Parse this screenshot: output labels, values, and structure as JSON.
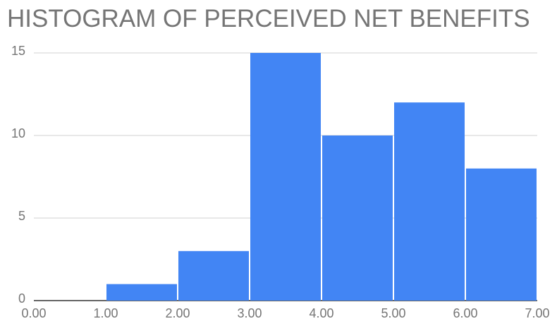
{
  "chart_data": {
    "type": "histogram",
    "title": "HISTOGRAM OF PERCEIVED NET BENEFITS",
    "bins": [
      0,
      1,
      2,
      3,
      4,
      5,
      6,
      7
    ],
    "values": [
      0,
      1,
      3,
      15,
      10,
      12,
      8
    ],
    "color": "#4285f4",
    "xlim": [
      0,
      7
    ],
    "xticks": [
      {
        "value": 0,
        "label": "0.00"
      },
      {
        "value": 1,
        "label": "1.00"
      },
      {
        "value": 2,
        "label": "2.00"
      },
      {
        "value": 3,
        "label": "3.00"
      },
      {
        "value": 4,
        "label": "4.00"
      },
      {
        "value": 5,
        "label": "5.00"
      },
      {
        "value": 6,
        "label": "6.00"
      },
      {
        "value": 7,
        "label": "7.00"
      }
    ],
    "ylim": [
      0,
      15
    ],
    "yticks": [
      0,
      5,
      10,
      15
    ],
    "grid": true
  }
}
